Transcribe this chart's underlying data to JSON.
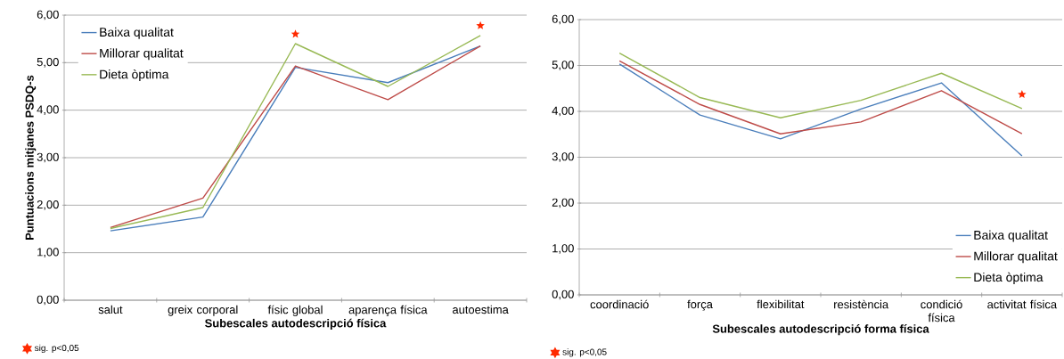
{
  "chart_data": [
    {
      "type": "line",
      "xlabel": "Subescales autodescripció física",
      "ylabel": "Puntuacions mitjanes PSDQ-s",
      "categories": [
        "salut",
        "greix corporal",
        "físic global",
        "aparença física",
        "autoestima"
      ],
      "series": [
        {
          "name": "Baixa qualitat",
          "color": "#4a7ebb",
          "values": [
            1.46,
            1.75,
            4.9,
            4.58,
            5.35
          ]
        },
        {
          "name": "Millorar qualitat",
          "color": "#be4b48",
          "values": [
            1.53,
            2.15,
            4.93,
            4.22,
            5.35
          ]
        },
        {
          "name": "Dieta òptima",
          "color": "#98b954",
          "values": [
            1.51,
            1.95,
            5.4,
            4.5,
            5.57
          ]
        },
        {
          "type": "scatter",
          "marker": "star",
          "color": "#ff2a00",
          "values": [
            null,
            null,
            5.6,
            null,
            5.78
          ]
        }
      ],
      "annotations": [
        "sig. p<0,05"
      ],
      "ylim": [
        0,
        6
      ],
      "yticks": [
        {
          "value": 0,
          "label": "0,00"
        },
        {
          "value": 1,
          "label": "1,00"
        },
        {
          "value": 2,
          "label": "2,00"
        },
        {
          "value": 3,
          "label": "3,00"
        },
        {
          "value": 4,
          "label": "4,00"
        },
        {
          "value": 5,
          "label": "5,00"
        },
        {
          "value": 6,
          "label": "6,00"
        }
      ],
      "grid": "y",
      "legend": "top left",
      "marker": "none",
      "line_style": "solid"
    },
    {
      "type": "line",
      "xlabel": "Subescales autodescripció forma física",
      "categories": [
        "coordinació",
        "força",
        "flexibilitat",
        "resistència",
        "condició física",
        "activitat física"
      ],
      "series": [
        {
          "name": "Baixa qualitat",
          "color": "#4a7ebb",
          "values": [
            5.03,
            3.92,
            3.4,
            4.05,
            4.62,
            3.03
          ]
        },
        {
          "name": "Millorar qualitat",
          "color": "#be4b48",
          "values": [
            5.1,
            4.15,
            3.51,
            3.77,
            4.45,
            3.51
          ]
        },
        {
          "name": "Dieta òptima",
          "color": "#98b954",
          "values": [
            5.27,
            4.3,
            3.86,
            4.24,
            4.83,
            4.06
          ]
        },
        {
          "type": "scatter",
          "marker": "star",
          "color": "#ff2a00",
          "values": [
            null,
            null,
            null,
            null,
            null,
            4.37
          ]
        }
      ],
      "annotations": [
        "sig. p<0,05"
      ],
      "ylim": [
        0,
        6
      ],
      "yticks": [
        {
          "value": 0,
          "label": "0,00"
        },
        {
          "value": 1,
          "label": "1,00"
        },
        {
          "value": 2,
          "label": "2,00"
        },
        {
          "value": 3,
          "label": "3,00"
        },
        {
          "value": 4,
          "label": "4,00"
        },
        {
          "value": 5,
          "label": "5,00"
        },
        {
          "value": 6,
          "label": "6,00"
        }
      ],
      "grid": "y",
      "legend": "bottom right",
      "marker": "none",
      "line_style": "solid"
    }
  ]
}
